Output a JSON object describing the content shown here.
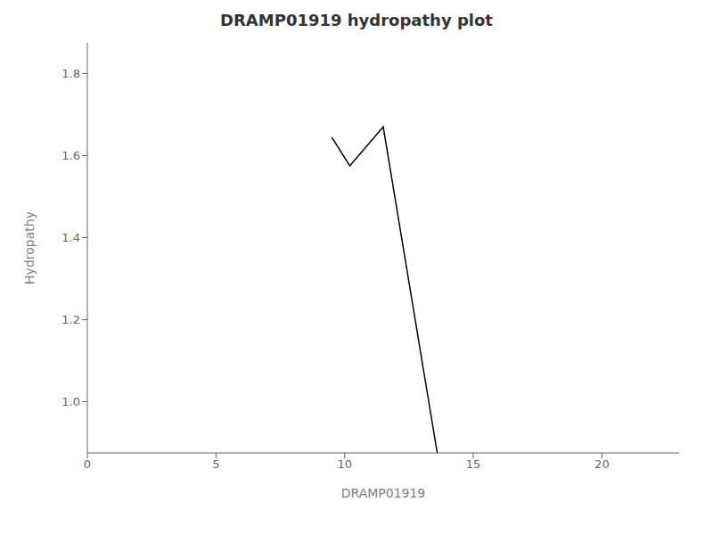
{
  "chart_data": {
    "type": "line",
    "title": "DRAMP01919 hydropathy plot",
    "xlabel": "DRAMP01919",
    "ylabel": "Hydropathy",
    "x": [
      9.5,
      10.2,
      11.5,
      13.6
    ],
    "values": [
      1.645,
      1.575,
      1.67,
      0.875
    ],
    "color": "#000000",
    "xlim": [
      0,
      23
    ],
    "ylim": [
      0.875,
      1.875
    ],
    "xticks": [
      0,
      5,
      10,
      15,
      20
    ],
    "yticks": [
      {
        "value": 1.0,
        "label": "1.0"
      },
      1.2,
      1.4,
      1.6,
      1.8
    ],
    "grid": false
  }
}
